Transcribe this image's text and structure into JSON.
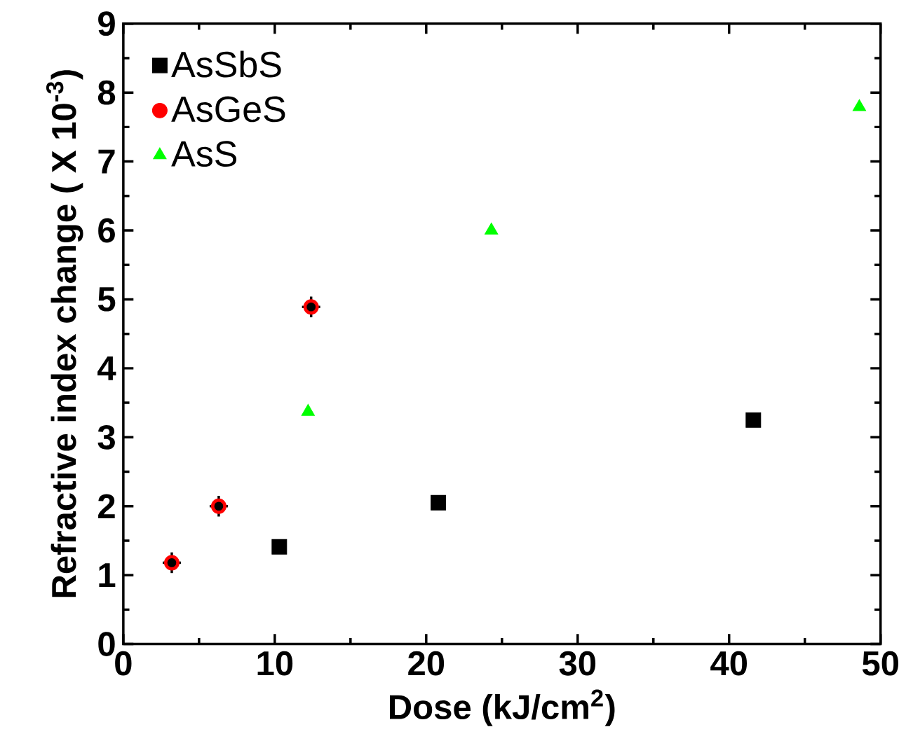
{
  "chart_data": {
    "type": "scatter",
    "xlabel": "Dose (kJ/cm$^{2}$)",
    "ylabel": "Refractive index change ( X 10$^{-3}$)",
    "xlim": [
      0,
      50
    ],
    "xticks": [
      0,
      10,
      20,
      30,
      40,
      50
    ],
    "ylim": [
      0,
      9
    ],
    "yticks": [
      0,
      1,
      2,
      3,
      4,
      5,
      6,
      7,
      8,
      9
    ],
    "grid": false,
    "legend": "top left",
    "series": [
      {
        "name": "AsSbS",
        "color": "#000000",
        "marker": "square",
        "x": [
          10.3,
          20.8,
          41.6
        ],
        "values": [
          1.41,
          2.05,
          3.25
        ]
      },
      {
        "name": "AsGeS",
        "color": "#ff0000",
        "marker": "circle",
        "x": [
          3.2,
          6.3,
          12.4
        ],
        "values": [
          1.18,
          2.0,
          4.89
        ],
        "errors": [
          0.15,
          0.15,
          0.15
        ],
        "xerrors": [
          0.6,
          0.6,
          0.6
        ]
      },
      {
        "name": "AsS",
        "color": "#00ff00",
        "marker": "triangle",
        "x": [
          12.2,
          24.3,
          48.6
        ],
        "values": [
          3.37,
          6.0,
          7.79
        ]
      }
    ]
  }
}
